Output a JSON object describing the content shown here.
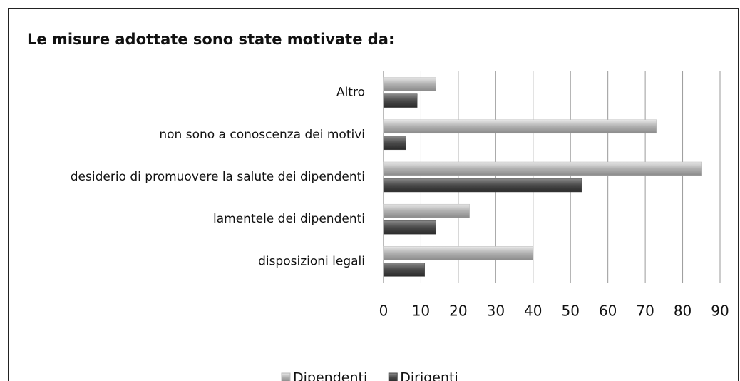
{
  "chart_data": {
    "type": "hbar",
    "title": "Le misure adottate sono state motivate da:",
    "categories": [
      "Altro",
      "non sono a conoscenza dei motivi",
      "desiderio di promuovere la salute dei dipendenti",
      "lamentele dei dipendenti",
      "disposizioni legali"
    ],
    "series": [
      {
        "name": "Dipendenti",
        "color": "#b8b8b8",
        "values": [
          14,
          73,
          85,
          23,
          40
        ]
      },
      {
        "name": "Dirigenti",
        "color": "#4a4a4a",
        "values": [
          9,
          6,
          53,
          14,
          11
        ]
      }
    ],
    "xlim": [
      0,
      90
    ],
    "xticks": [
      0,
      10,
      20,
      30,
      40,
      50,
      60,
      70,
      80,
      90
    ],
    "grid": true,
    "legend": "bottom"
  }
}
